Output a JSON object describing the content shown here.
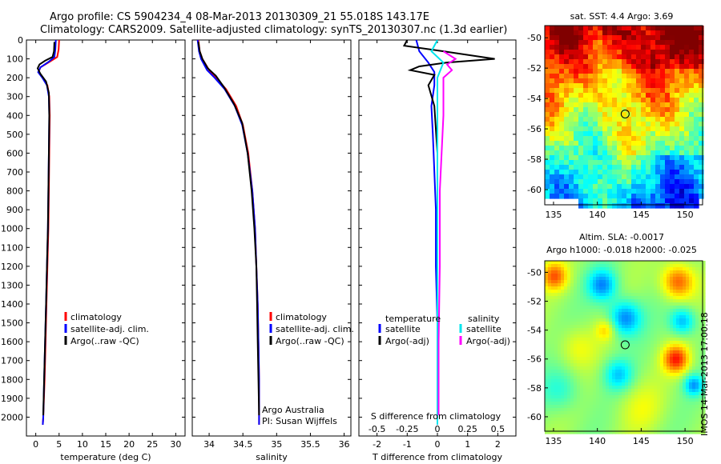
{
  "header": {
    "title_line1": "Argo profile: CS 5904234_4 08-Mar-2013 20130309_21 55.018S 143.17E",
    "title_line2": "Climatology: CARS2009. Satellite-adjusted climatology: synTS_20130307.nc (1.3d earlier)"
  },
  "credit": {
    "line1": "Argo Australia",
    "line2": "PI: Susan Wijffels"
  },
  "stamp": "IMOS 14-Mar-2013 17:00:18",
  "colors": {
    "climatology": "#ff0000",
    "satellite": "#0000ff",
    "argo": "#000000",
    "satellite_salinity": "#00e5ee",
    "argo_salinity": "#ff00ff"
  },
  "chart_data": [
    {
      "id": "temperature",
      "type": "line",
      "xlabel": "temperature (deg C)",
      "ylabel": "",
      "xlim": [
        -2,
        32
      ],
      "ylim": [
        2100,
        0
      ],
      "xticks": [
        0,
        5,
        10,
        15,
        20,
        25,
        30
      ],
      "xtick_labels": [
        "0",
        "5",
        "10",
        "15",
        "20",
        "25",
        "30"
      ],
      "yticks": [
        0,
        100,
        200,
        300,
        400,
        500,
        600,
        700,
        800,
        900,
        1000,
        1100,
        1200,
        1300,
        1400,
        1500,
        1600,
        1700,
        1800,
        1900,
        2000
      ],
      "ytick_labels": [
        "0",
        "100",
        "200",
        "300",
        "400",
        "500",
        "600",
        "700",
        "800",
        "900",
        "1000",
        "1100",
        "1200",
        "1300",
        "1400",
        "1500",
        "1600",
        "1700",
        "1800",
        "1900",
        "2000"
      ],
      "legend": [
        "climatology",
        "satellite-adj. clim.",
        "Argo(..raw -QC)"
      ],
      "series": [
        {
          "name": "climatology",
          "color": "#ff0000",
          "points": [
            [
              5.0,
              0
            ],
            [
              4.9,
              50
            ],
            [
              4.6,
              90
            ],
            [
              3.0,
              115
            ],
            [
              1.0,
              145
            ],
            [
              0.6,
              170
            ],
            [
              1.5,
              200
            ],
            [
              2.5,
              240
            ],
            [
              2.9,
              300
            ],
            [
              3.0,
              400
            ],
            [
              2.9,
              600
            ],
            [
              2.8,
              800
            ],
            [
              2.7,
              1000
            ],
            [
              2.5,
              1200
            ],
            [
              2.3,
              1400
            ],
            [
              2.1,
              1600
            ],
            [
              1.9,
              1800
            ],
            [
              1.6,
              2000
            ],
            [
              1.5,
              2040
            ]
          ]
        },
        {
          "name": "satellite-adj. clim.",
          "color": "#0000ff",
          "points": [
            [
              4.3,
              0
            ],
            [
              4.2,
              50
            ],
            [
              4.0,
              90
            ],
            [
              2.8,
              115
            ],
            [
              1.0,
              145
            ],
            [
              0.5,
              170
            ],
            [
              1.4,
              200
            ],
            [
              2.4,
              240
            ],
            [
              2.8,
              300
            ],
            [
              2.9,
              400
            ],
            [
              2.8,
              600
            ],
            [
              2.7,
              800
            ],
            [
              2.6,
              1000
            ],
            [
              2.4,
              1200
            ],
            [
              2.2,
              1400
            ],
            [
              2.0,
              1600
            ],
            [
              1.8,
              1800
            ],
            [
              1.6,
              2000
            ],
            [
              1.5,
              2040
            ]
          ]
        },
        {
          "name": "Argo(..raw -QC)",
          "color": "#000000",
          "points": [
            [
              4.0,
              10
            ],
            [
              3.9,
              60
            ],
            [
              3.6,
              90
            ],
            [
              2.0,
              110
            ],
            [
              0.8,
              130
            ],
            [
              0.4,
              150
            ],
            [
              1.0,
              180
            ],
            [
              2.2,
              220
            ],
            [
              2.8,
              280
            ],
            [
              2.9,
              400
            ],
            [
              2.8,
              600
            ],
            [
              2.7,
              800
            ],
            [
              2.6,
              1000
            ],
            [
              2.4,
              1200
            ],
            [
              2.2,
              1400
            ],
            [
              2.0,
              1600
            ],
            [
              1.8,
              1800
            ],
            [
              1.6,
              1990
            ]
          ]
        }
      ]
    },
    {
      "id": "salinity",
      "type": "line",
      "xlabel": "salinity",
      "ylabel": "",
      "xlim": [
        33.75,
        36.1
      ],
      "ylim": [
        2100,
        0
      ],
      "xticks": [
        34,
        34.5,
        35,
        35.5,
        36
      ],
      "xtick_labels": [
        "34",
        "34.5",
        "35",
        "35.5",
        "36"
      ],
      "legend": [
        "climatology",
        "satellite-adj. clim.",
        "Argo(..raw -QC)"
      ],
      "series": [
        {
          "name": "climatology",
          "color": "#ff0000",
          "points": [
            [
              33.84,
              0
            ],
            [
              33.86,
              60
            ],
            [
              33.9,
              100
            ],
            [
              34.0,
              160
            ],
            [
              34.1,
              200
            ],
            [
              34.25,
              260
            ],
            [
              34.4,
              350
            ],
            [
              34.5,
              450
            ],
            [
              34.58,
              600
            ],
            [
              34.64,
              800
            ],
            [
              34.68,
              1000
            ],
            [
              34.7,
              1200
            ],
            [
              34.72,
              1400
            ],
            [
              34.73,
              1600
            ],
            [
              34.74,
              1800
            ],
            [
              34.74,
              2040
            ]
          ]
        },
        {
          "name": "satellite-adj. clim.",
          "color": "#0000ff",
          "points": [
            [
              33.83,
              0
            ],
            [
              33.85,
              60
            ],
            [
              33.88,
              100
            ],
            [
              33.97,
              160
            ],
            [
              34.08,
              200
            ],
            [
              34.23,
              260
            ],
            [
              34.38,
              350
            ],
            [
              34.49,
              450
            ],
            [
              34.57,
              600
            ],
            [
              34.64,
              800
            ],
            [
              34.68,
              1000
            ],
            [
              34.7,
              1200
            ],
            [
              34.72,
              1400
            ],
            [
              34.73,
              1600
            ],
            [
              34.74,
              1800
            ],
            [
              34.74,
              2040
            ]
          ]
        },
        {
          "name": "Argo(..raw -QC)",
          "color": "#000000",
          "points": [
            [
              33.84,
              10
            ],
            [
              33.86,
              60
            ],
            [
              33.9,
              100
            ],
            [
              33.98,
              150
            ],
            [
              34.1,
              190
            ],
            [
              34.22,
              250
            ],
            [
              34.37,
              340
            ],
            [
              34.49,
              440
            ],
            [
              34.57,
              600
            ],
            [
              34.63,
              800
            ],
            [
              34.67,
              1000
            ],
            [
              34.7,
              1200
            ],
            [
              34.71,
              1400
            ],
            [
              34.72,
              1600
            ],
            [
              34.73,
              1800
            ],
            [
              34.74,
              1990
            ]
          ]
        }
      ]
    },
    {
      "id": "difference",
      "type": "line",
      "xlabel": "T difference from climatology",
      "xlabel2": "S difference from climatology",
      "ylabel": "",
      "xlim": [
        -2.6,
        2.6
      ],
      "ylim": [
        2100,
        0
      ],
      "xticks": [
        -2,
        -1,
        0,
        1,
        2
      ],
      "xtick_labels": [
        "-2",
        "-1",
        "0",
        "1",
        "2"
      ],
      "xticks2": [
        -0.5,
        -0.25,
        0,
        0.25,
        0.5
      ],
      "xtick2_labels": [
        "-0.5",
        "-0.25",
        "0",
        "0.25",
        "0.5"
      ],
      "legend_temperature": [
        "temperature",
        "satellite",
        "Argo(-adj)"
      ],
      "legend_salinity": [
        "salinity",
        "satellite",
        "Argo(-adj)"
      ],
      "series": [
        {
          "name": "temperature satellite",
          "color": "#0000ff",
          "points": [
            [
              -0.7,
              0
            ],
            [
              -0.6,
              60
            ],
            [
              -0.3,
              120
            ],
            [
              -0.1,
              170
            ],
            [
              -0.1,
              240
            ],
            [
              -0.2,
              350
            ],
            [
              -0.15,
              500
            ],
            [
              -0.1,
              700
            ],
            [
              -0.05,
              900
            ],
            [
              -0.05,
              1200
            ],
            [
              0,
              1500
            ],
            [
              0,
              1800
            ],
            [
              0,
              2040
            ]
          ]
        },
        {
          "name": "temperature Argo(-adj)",
          "color": "#000000",
          "points": [
            [
              -1.0,
              0
            ],
            [
              -1.1,
              30
            ],
            [
              0.2,
              60
            ],
            [
              1.9,
              100
            ],
            [
              0.3,
              120
            ],
            [
              -0.6,
              140
            ],
            [
              -0.9,
              160
            ],
            [
              -0.1,
              185
            ],
            [
              -0.3,
              240
            ],
            [
              -0.1,
              350
            ],
            [
              0,
              600
            ],
            [
              0,
              1000
            ],
            [
              0,
              1500
            ],
            [
              0,
              1990
            ]
          ]
        },
        {
          "name": "salinity satellite",
          "color": "#00e5ee",
          "points": [
            [
              0,
              0
            ],
            [
              -0.05,
              60
            ],
            [
              0.05,
              120
            ],
            [
              0,
              200
            ],
            [
              0,
              400
            ],
            [
              0,
              1000
            ],
            [
              0,
              2040
            ]
          ]
        },
        {
          "name": "salinity Argo(-adj)",
          "color": "#ff00ff",
          "points": [
            [
              0.05,
              60
            ],
            [
              0.15,
              100
            ],
            [
              0.08,
              130
            ],
            [
              0.12,
              160
            ],
            [
              0.05,
              200
            ],
            [
              0.05,
              400
            ],
            [
              0.02,
              800
            ],
            [
              0.02,
              1200
            ],
            [
              0.01,
              1600
            ],
            [
              0.01,
              1990
            ]
          ]
        }
      ]
    },
    {
      "id": "sst_map",
      "type": "heatmap",
      "title": "sat. SST: 4.4 Argo: 3.69",
      "xlim": [
        134,
        152
      ],
      "ylim": [
        -61,
        -49.2
      ],
      "xticks": [
        135,
        140,
        145,
        150
      ],
      "xtick_labels": [
        "135",
        "140",
        "145",
        "150"
      ],
      "yticks": [
        -50,
        -52,
        -54,
        -56,
        -58,
        -60
      ],
      "ytick_labels": [
        "-50",
        "-52",
        "-54",
        "-56",
        "-58",
        "-60"
      ],
      "marker": {
        "lon": 143.17,
        "lat": -55.018
      }
    },
    {
      "id": "sla_map",
      "type": "heatmap",
      "title": "Altim. SLA: -0.0017",
      "subtitle": "Argo h1000: -0.018 h2000: -0.025",
      "xlim": [
        134,
        152
      ],
      "ylim": [
        -61,
        -49.2
      ],
      "xticks": [
        135,
        140,
        145,
        150
      ],
      "xtick_labels": [
        "135",
        "140",
        "145",
        "150"
      ],
      "yticks": [
        -50,
        -52,
        -54,
        -56,
        -58,
        -60
      ],
      "ytick_labels": [
        "-50",
        "-52",
        "-54",
        "-56",
        "-58",
        "-60"
      ],
      "marker": {
        "lon": 143.17,
        "lat": -55.018
      }
    }
  ]
}
